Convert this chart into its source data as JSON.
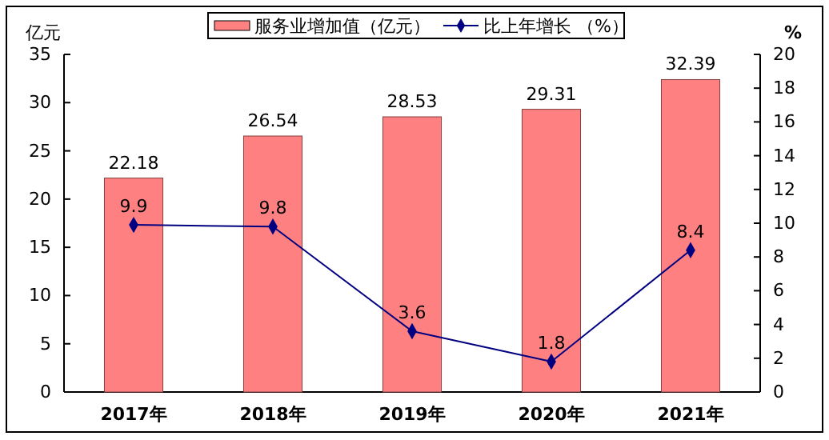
{
  "chart_data": {
    "type": "bar",
    "categories": [
      "2017年",
      "2018年",
      "2019年",
      "2020年",
      "2021年"
    ],
    "ylabel": "亿元",
    "y2label": "%",
    "series": [
      {
        "name": "服务业增加值（亿元）",
        "color": "#ff8080",
        "values": [
          22.18,
          26.54,
          28.53,
          29.31,
          32.39
        ]
      },
      {
        "name": "比上年增长 （%）",
        "type": "line",
        "axis": "y2",
        "color": "#000080",
        "marker": "diamond",
        "values": [
          9.9,
          9.8,
          3.6,
          1.8,
          8.4
        ]
      }
    ],
    "ylim": [
      0,
      35
    ],
    "yticks": [
      0,
      5,
      10,
      15,
      20,
      25,
      30,
      35
    ],
    "y2lim": [
      0,
      20
    ],
    "y2ticks": [
      0,
      2,
      4,
      6,
      8,
      10,
      12,
      14,
      16,
      18,
      20
    ],
    "data_labels": true,
    "legend": "top",
    "grid": false
  }
}
